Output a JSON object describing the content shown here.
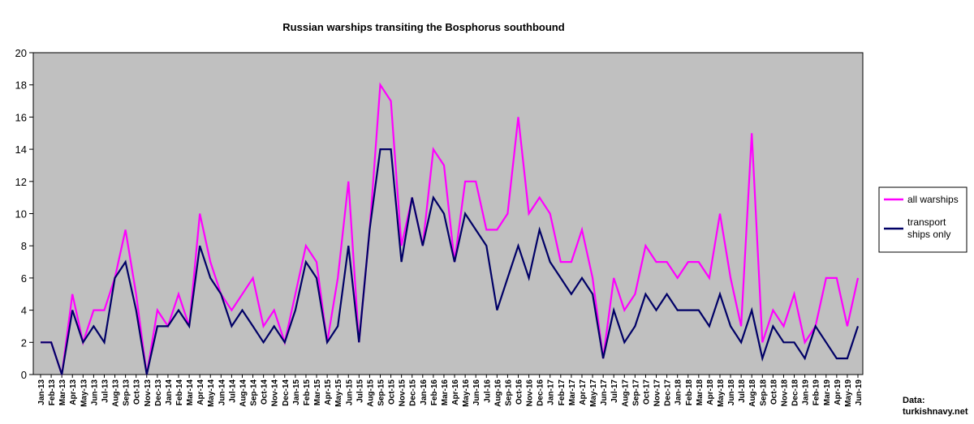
{
  "chart_data": {
    "type": "line",
    "title": "Russian warships transiting the Bosphorus southbound",
    "xlabel": "",
    "ylabel": "",
    "ylim": [
      0,
      20
    ],
    "yticks": [
      0,
      2,
      4,
      6,
      8,
      10,
      12,
      14,
      16,
      18,
      20
    ],
    "grid": false,
    "legend_position": "right",
    "categories": [
      "Jan-13",
      "Feb-13",
      "Mar-13",
      "Apr-13",
      "May-13",
      "Jun-13",
      "Jul-13",
      "Aug-13",
      "Sep-13",
      "Oct-13",
      "Nov-13",
      "Dec-13",
      "Jan-14",
      "Feb-14",
      "Mar-14",
      "Apr-14",
      "May-14",
      "Jun-14",
      "Jul-14",
      "Aug-14",
      "Sep-14",
      "Oct-14",
      "Nov-14",
      "Dec-14",
      "Jan-15",
      "Feb-15",
      "Mar-15",
      "Apr-15",
      "May-15",
      "Jun-15",
      "Jul-15",
      "Aug-15",
      "Sep-15",
      "Oct-15",
      "Nov-15",
      "Dec-15",
      "Jan-16",
      "Feb-16",
      "Mar-16",
      "Apr-16",
      "May-16",
      "Jun-16",
      "Jul-16",
      "Aug-16",
      "Sep-16",
      "Oct-16",
      "Nov-16",
      "Dec-16",
      "Jan-17",
      "Feb-17",
      "Mar-17",
      "Apr-17",
      "May-17",
      "Jun-17",
      "Jul-17",
      "Aug-17",
      "Sep-17",
      "Oct-17",
      "Nov-17",
      "Dec-17",
      "Jan-18",
      "Feb-18",
      "Mar-18",
      "Apr-18",
      "May-18",
      "Jun-18",
      "Jul-18",
      "Aug-18",
      "Sep-18",
      "Oct-18",
      "Nov-18",
      "Dec-18",
      "Jan-19",
      "Feb-19",
      "Mar-19",
      "Apr-19",
      "May-19",
      "Jun-19"
    ],
    "series": [
      {
        "name": "all warships",
        "color": "#ff00ff",
        "values": [
          2,
          2,
          0,
          5,
          2,
          4,
          4,
          6,
          9,
          5,
          0,
          4,
          3,
          5,
          3,
          10,
          7,
          5,
          4,
          5,
          6,
          3,
          4,
          2,
          5,
          8,
          7,
          2,
          6,
          12,
          2,
          9,
          18,
          17,
          8,
          11,
          8,
          14,
          13,
          7,
          12,
          12,
          9,
          9,
          10,
          16,
          10,
          11,
          10,
          7,
          7,
          9,
          6,
          1,
          6,
          4,
          5,
          8,
          7,
          7,
          6,
          7,
          7,
          6,
          10,
          6,
          3,
          15,
          2,
          4,
          3,
          5,
          2,
          3,
          6,
          6,
          3,
          6
        ]
      },
      {
        "name": "transport\nships only",
        "color": "#000066",
        "values": [
          2,
          2,
          0,
          4,
          2,
          3,
          2,
          6,
          7,
          4,
          0,
          3,
          3,
          4,
          3,
          8,
          6,
          5,
          3,
          4,
          3,
          2,
          3,
          2,
          4,
          7,
          6,
          2,
          3,
          8,
          2,
          9,
          14,
          14,
          7,
          11,
          8,
          11,
          10,
          7,
          10,
          9,
          8,
          4,
          6,
          8,
          6,
          9,
          7,
          6,
          5,
          6,
          5,
          1,
          4,
          2,
          3,
          5,
          4,
          5,
          4,
          4,
          4,
          3,
          5,
          3,
          2,
          4,
          1,
          3,
          2,
          2,
          1,
          3,
          2,
          1,
          1,
          3
        ]
      }
    ]
  },
  "source_label": {
    "line1": "Data:",
    "line2": "turkishnavy.net"
  },
  "colors": {
    "plot_background": "#c0c0c0",
    "axis": "#000000"
  }
}
